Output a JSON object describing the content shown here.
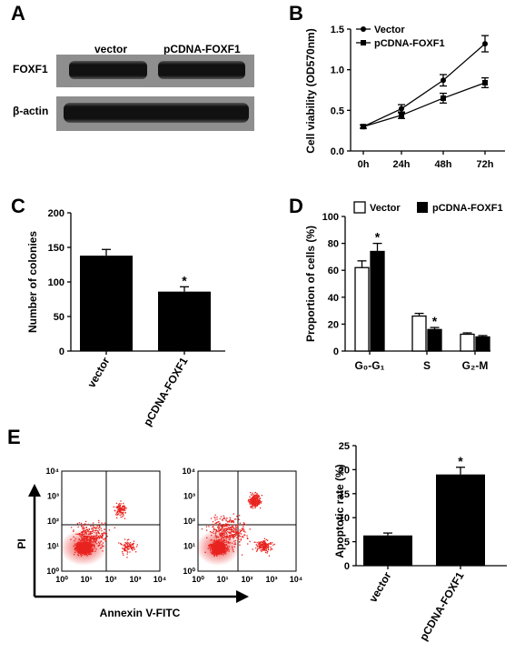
{
  "panels": {
    "A": {
      "letter": "A",
      "col_labels": [
        "vector",
        "pCDNA-FOXF1"
      ],
      "row_labels": [
        "FOXF1",
        "β-actin"
      ]
    },
    "B": {
      "letter": "B",
      "chart_data": {
        "type": "line",
        "xlabel": "",
        "ylabel": "Cell viability (OD570nm)",
        "categories": [
          "0h",
          "24h",
          "48h",
          "72h"
        ],
        "ylim": [
          0,
          1.5
        ],
        "yticks": [
          "0.0",
          "0.5",
          "1.0",
          "1.5"
        ],
        "legend_position": "top-left",
        "series": [
          {
            "name": "Vector",
            "marker": "circle",
            "values": [
              0.3,
              0.52,
              0.87,
              1.32
            ],
            "errors": [
              0.02,
              0.05,
              0.07,
              0.1
            ]
          },
          {
            "name": "pCDNA-FOXF1",
            "marker": "square",
            "values": [
              0.3,
              0.44,
              0.65,
              0.84
            ],
            "errors": [
              0.02,
              0.04,
              0.06,
              0.06
            ]
          }
        ]
      }
    },
    "C": {
      "letter": "C",
      "chart_data": {
        "type": "bar",
        "ylabel": "Number of colonies",
        "categories": [
          "vector",
          "pCDNA-FOXF1"
        ],
        "values": [
          138,
          86
        ],
        "errors": [
          9,
          7
        ],
        "significance": [
          "",
          "*"
        ],
        "ylim": [
          0,
          200
        ],
        "yticks": [
          "0",
          "50",
          "100",
          "150",
          "200"
        ]
      }
    },
    "D": {
      "letter": "D",
      "chart_data": {
        "type": "bar",
        "ylabel": "Proportion of cells (%)",
        "categories": [
          "G₀-G₁",
          "S",
          "G₂-M"
        ],
        "ylim": [
          0,
          100
        ],
        "yticks": [
          "0",
          "20",
          "40",
          "60",
          "80",
          "100"
        ],
        "legend_position": "top",
        "series": [
          {
            "name": "Vector",
            "fill": "#ffffff",
            "values": [
              62,
              26,
              12.5
            ],
            "errors": [
              5,
              2,
              1
            ],
            "significance": [
              "",
              "",
              ""
            ]
          },
          {
            "name": "pCDNA-FOXF1",
            "fill": "#000000",
            "values": [
              74,
              16,
              10.5
            ],
            "errors": [
              6,
              1.5,
              1
            ],
            "significance": [
              "*",
              "*",
              ""
            ]
          }
        ]
      }
    },
    "E": {
      "letter": "E",
      "flow": {
        "ylabel": "PI",
        "xlabel": "Annexin V-FITC",
        "tick_labels": [
          "10⁰",
          "10¹",
          "10²",
          "10³",
          "10⁴"
        ],
        "dot_color": "#e8231f"
      },
      "chart_data": {
        "type": "bar",
        "ylabel": "Apoptotic rate (%)",
        "categories": [
          "vector",
          "pCDNA-FOXF1"
        ],
        "values": [
          6.3,
          19
        ],
        "errors": [
          0.5,
          1.5
        ],
        "significance": [
          "",
          "*"
        ],
        "ylim": [
          0,
          25
        ],
        "yticks": [
          "0",
          "5",
          "10",
          "15",
          "20",
          "25"
        ]
      }
    }
  }
}
